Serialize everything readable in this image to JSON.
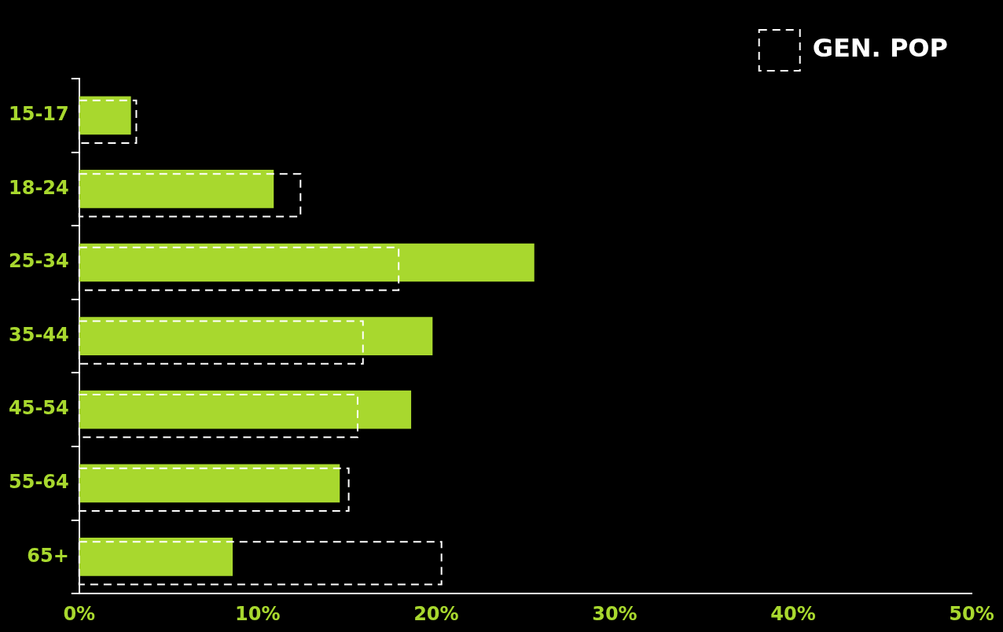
{
  "chart_data": {
    "type": "bar",
    "orientation": "horizontal",
    "categories": [
      "15-17",
      "18-24",
      "25-34",
      "35-44",
      "45-54",
      "55-64",
      "65+"
    ],
    "series": [
      {
        "color": "#a8d82e",
        "values": [
          2.9,
          10.9,
          25.5,
          19.8,
          18.6,
          14.6,
          8.6
        ]
      },
      {
        "name": "GEN. POP",
        "color": "#ffffff",
        "line_style": "dashed",
        "values": [
          3.2,
          12.4,
          17.9,
          15.9,
          15.6,
          15.1,
          20.3
        ]
      }
    ],
    "xlim": [
      0,
      50
    ],
    "xticks": [
      {
        "value": 0,
        "label": "0%"
      },
      {
        "value": 10,
        "label": "10%"
      },
      {
        "value": 20,
        "label": "20%"
      },
      {
        "value": 30,
        "label": "30%"
      },
      {
        "value": 40,
        "label": "40%"
      },
      {
        "value": 50,
        "label": "50%"
      }
    ],
    "grid": false,
    "legend": "top right"
  }
}
